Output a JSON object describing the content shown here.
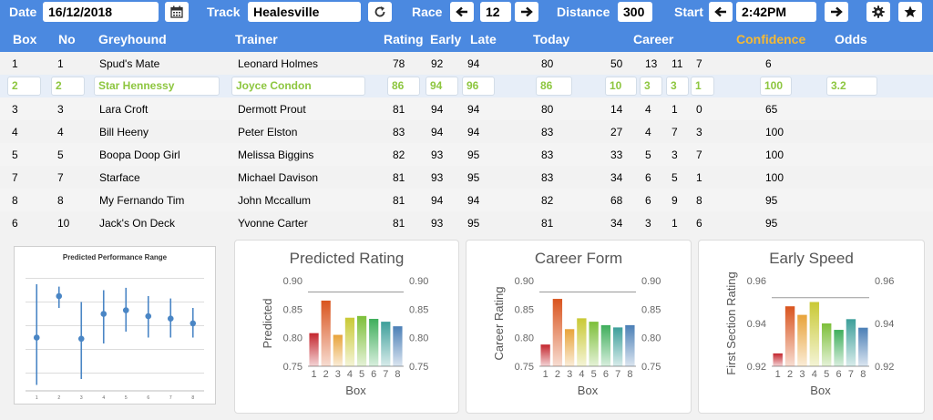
{
  "toolbar": {
    "date_label": "Date",
    "date_value": "16/12/2018",
    "track_label": "Track",
    "track_value": "Healesville",
    "race_label": "Race",
    "race_value": "12",
    "distance_label": "Distance",
    "distance_value": "300",
    "start_label": "Start",
    "start_value": "2:42PM"
  },
  "table": {
    "headers": {
      "box": "Box",
      "no": "No",
      "greyhound": "Greyhound",
      "trainer": "Trainer",
      "rating": "Rating",
      "early": "Early",
      "late": "Late",
      "today": "Today",
      "career": "Career",
      "confidence": "Confidence",
      "odds": "Odds"
    },
    "rows": [
      {
        "box": "1",
        "no": "1",
        "name": "Spud's Mate",
        "trainer": "Leonard Holmes",
        "rating": "78",
        "early": "92",
        "late": "94",
        "today": "80",
        "c1": "50",
        "c2": "13",
        "c3": "11",
        "c4": "7",
        "confidence": "6",
        "odds": ""
      },
      {
        "box": "2",
        "no": "2",
        "name": "Star Hennessy",
        "trainer": "Joyce Condon",
        "rating": "86",
        "early": "94",
        "late": "96",
        "today": "86",
        "c1": "10",
        "c2": "3",
        "c3": "3",
        "c4": "1",
        "confidence": "100",
        "odds": "3.2"
      },
      {
        "box": "3",
        "no": "3",
        "name": "Lara Croft",
        "trainer": "Dermott Prout",
        "rating": "81",
        "early": "94",
        "late": "94",
        "today": "80",
        "c1": "14",
        "c2": "4",
        "c3": "1",
        "c4": "0",
        "confidence": "65",
        "odds": ""
      },
      {
        "box": "4",
        "no": "4",
        "name": "Bill Heeny",
        "trainer": "Peter Elston",
        "rating": "83",
        "early": "94",
        "late": "94",
        "today": "83",
        "c1": "27",
        "c2": "4",
        "c3": "7",
        "c4": "3",
        "confidence": "100",
        "odds": ""
      },
      {
        "box": "5",
        "no": "5",
        "name": "Boopa Doop Girl",
        "trainer": "Melissa Biggins",
        "rating": "82",
        "early": "93",
        "late": "95",
        "today": "83",
        "c1": "33",
        "c2": "5",
        "c3": "3",
        "c4": "7",
        "confidence": "100",
        "odds": ""
      },
      {
        "box": "7",
        "no": "7",
        "name": "Starface",
        "trainer": "Michael Davison",
        "rating": "81",
        "early": "93",
        "late": "95",
        "today": "83",
        "c1": "34",
        "c2": "6",
        "c3": "5",
        "c4": "1",
        "confidence": "100",
        "odds": ""
      },
      {
        "box": "8",
        "no": "8",
        "name": "My Fernando Tim",
        "trainer": "John Mccallum",
        "rating": "81",
        "early": "94",
        "late": "94",
        "today": "82",
        "c1": "68",
        "c2": "6",
        "c3": "9",
        "c4": "8",
        "confidence": "95",
        "odds": ""
      },
      {
        "box": "6",
        "no": "10",
        "name": "Jack's On Deck",
        "trainer": "Yvonne Carter",
        "rating": "81",
        "early": "93",
        "late": "95",
        "today": "81",
        "c1": "34",
        "c2": "3",
        "c3": "1",
        "c4": "6",
        "confidence": "95",
        "odds": ""
      }
    ]
  },
  "chart_data": [
    {
      "type": "scatter",
      "title": "Predicted Performance Range",
      "x": [
        1,
        2,
        3,
        4,
        5,
        6,
        7,
        8
      ],
      "y": [
        0.45,
        0.8,
        0.44,
        0.65,
        0.68,
        0.63,
        0.61,
        0.57
      ],
      "low": [
        0.05,
        0.7,
        0.1,
        0.4,
        0.5,
        0.45,
        0.45,
        0.45
      ],
      "high": [
        0.9,
        0.88,
        0.75,
        0.85,
        0.87,
        0.8,
        0.78,
        0.7
      ],
      "ylim": [
        0,
        1
      ]
    },
    {
      "type": "bar",
      "title": "Predicted Rating",
      "categories": [
        "1",
        "2",
        "3",
        "4",
        "5",
        "6",
        "7",
        "8"
      ],
      "values": [
        0.808,
        0.865,
        0.805,
        0.835,
        0.838,
        0.833,
        0.828,
        0.82
      ],
      "xlabel": "Box",
      "ylabel": "Predicted",
      "ylim": [
        0.75,
        0.9
      ],
      "ticks": [
        "0.90",
        "0.85",
        "0.80",
        "0.75"
      ],
      "refline": 0.88
    },
    {
      "type": "bar",
      "title": "Career Form",
      "categories": [
        "1",
        "2",
        "3",
        "4",
        "5",
        "6",
        "7",
        "8"
      ],
      "values": [
        0.788,
        0.868,
        0.815,
        0.834,
        0.828,
        0.822,
        0.818,
        0.822
      ],
      "xlabel": "Box",
      "ylabel": "Career Rating",
      "ylim": [
        0.75,
        0.9
      ],
      "ticks": [
        "0.90",
        "0.85",
        "0.80",
        "0.75"
      ],
      "refline": 0.88
    },
    {
      "type": "bar",
      "title": "Early Speed",
      "categories": [
        "1",
        "2",
        "3",
        "4",
        "5",
        "6",
        "7",
        "8"
      ],
      "values": [
        0.926,
        0.948,
        0.944,
        0.95,
        0.94,
        0.937,
        0.942,
        0.938
      ],
      "xlabel": "Box",
      "ylabel": "First Section Rating",
      "ylim": [
        0.92,
        0.96
      ],
      "ticks": [
        "0.96",
        "0.94",
        "0.92"
      ],
      "refline": 0.952
    }
  ],
  "colors": {
    "header_blue": "#4b89e0",
    "confidence_header": "#f5b934",
    "selected_text": "#8dc63f",
    "bar_palette": [
      "#c4262e",
      "#d9541e",
      "#e8a33a",
      "#c9c935",
      "#7dbf3a",
      "#3fae5b",
      "#3d9f9a",
      "#4b7fb6"
    ]
  },
  "icons": {
    "calendar": "calendar-icon",
    "refresh": "refresh-icon",
    "prev": "arrow-left-icon",
    "next": "arrow-right-icon",
    "settings": "gear-icon",
    "favorite": "star-icon"
  }
}
